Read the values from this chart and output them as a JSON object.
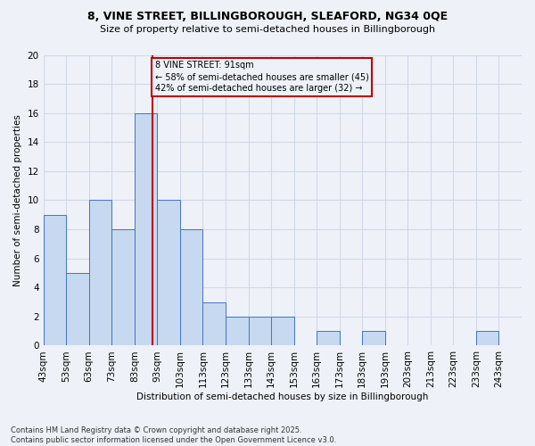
{
  "title_line1": "8, VINE STREET, BILLINGBOROUGH, SLEAFORD, NG34 0QE",
  "title_line2": "Size of property relative to semi-detached houses in Billingborough",
  "xlabel": "Distribution of semi-detached houses by size in Billingborough",
  "ylabel": "Number of semi-detached properties",
  "bins": [
    43,
    53,
    63,
    73,
    83,
    93,
    103,
    113,
    123,
    133,
    143,
    153,
    163,
    173,
    183,
    193,
    203,
    213,
    223,
    233,
    243,
    253
  ],
  "counts": [
    9,
    5,
    10,
    8,
    16,
    10,
    8,
    3,
    2,
    2,
    2,
    0,
    1,
    0,
    1,
    0,
    0,
    0,
    0,
    1,
    0
  ],
  "bar_color": "#c6d9f0",
  "bar_edge_color": "#4472c4",
  "grid_color": "#d0d8e8",
  "vline_x": 91,
  "vline_color": "#c00000",
  "annotation_title": "8 VINE STREET: 91sqm",
  "annotation_line1": "← 58% of semi-detached houses are smaller (45)",
  "annotation_line2": "42% of semi-detached houses are larger (32) →",
  "annotation_box_color": "#c00000",
  "ylim": [
    0,
    20
  ],
  "yticks": [
    0,
    2,
    4,
    6,
    8,
    10,
    12,
    14,
    16,
    18,
    20
  ],
  "background_color": "#eef2f8",
  "footer": "Contains HM Land Registry data © Crown copyright and database right 2025.\nContains public sector information licensed under the Open Government Licence v3.0.",
  "tick_labels": [
    "43sqm",
    "53sqm",
    "63sqm",
    "73sqm",
    "83sqm",
    "93sqm",
    "103sqm",
    "113sqm",
    "123sqm",
    "133sqm",
    "143sqm",
    "153sqm",
    "163sqm",
    "173sqm",
    "183sqm",
    "193sqm",
    "203sqm",
    "213sqm",
    "223sqm",
    "233sqm",
    "243sqm"
  ]
}
